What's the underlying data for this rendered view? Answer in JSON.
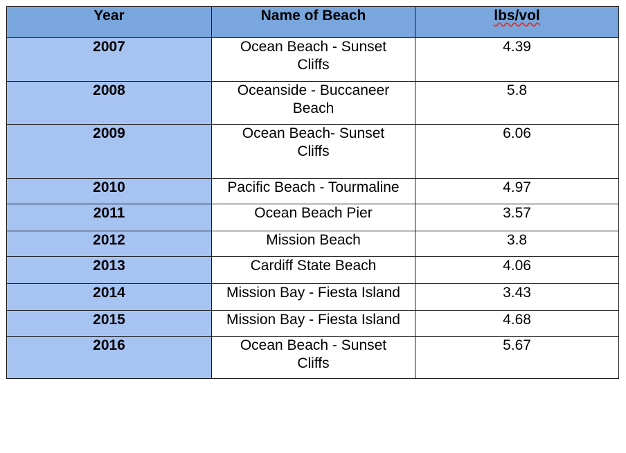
{
  "table": {
    "headers": {
      "year": "Year",
      "name": "Name of Beach",
      "value": "lbs/vol"
    },
    "rows": [
      {
        "year": "2007",
        "name_line1": "Ocean Beach - Sunset",
        "name_line2": "Cliffs",
        "value": "4.39"
      },
      {
        "year": "2008",
        "name_line1": "Oceanside - Buccaneer",
        "name_line2": "Beach",
        "value": "5.8"
      },
      {
        "year": "2009",
        "name_line1": "Ocean Beach- Sunset",
        "name_line2": "Cliffs",
        "value": "6.06"
      },
      {
        "year": "2010",
        "name_line1": "Pacific Beach - Tourmaline",
        "name_line2": "",
        "value": "4.97"
      },
      {
        "year": "2011",
        "name_line1": "Ocean Beach Pier",
        "name_line2": "",
        "value": "3.57"
      },
      {
        "year": "2012",
        "name_line1": "Mission Beach",
        "name_line2": "",
        "value": "3.8"
      },
      {
        "year": "2013",
        "name_line1": "Cardiff State Beach",
        "name_line2": "",
        "value": "4.06"
      },
      {
        "year": "2014",
        "name_line1": "Mission Bay - Fiesta Island",
        "name_line2": "",
        "value": "3.43"
      },
      {
        "year": "2015",
        "name_line1": "Mission Bay - Fiesta Island",
        "name_line2": "",
        "value": "4.68"
      },
      {
        "year": "2016",
        "name_line1": "Ocean Beach - Sunset",
        "name_line2": "Cliffs",
        "value": "5.67"
      }
    ]
  },
  "colors": {
    "header_bg": "#79a6dc",
    "year_col_bg": "#a7c3f2",
    "spellcheck_underline": "#d63a3a"
  }
}
